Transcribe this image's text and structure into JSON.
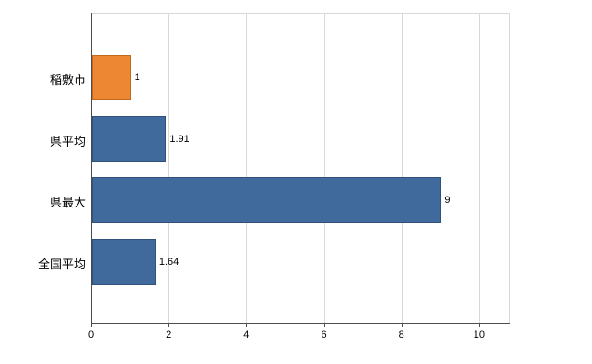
{
  "chart_data": {
    "type": "bar",
    "orientation": "horizontal",
    "title": "",
    "xlabel": "",
    "ylabel": "",
    "categories": [
      "稲敷市",
      "県平均",
      "県最大",
      "全国平均"
    ],
    "values": [
      1,
      1.91,
      9,
      1.64
    ],
    "value_labels": [
      "1",
      "1.91",
      "9",
      "1.64"
    ],
    "bar_colors": [
      "#ee8733",
      "#40699c",
      "#40699c",
      "#40699c"
    ],
    "bar_border_colors": [
      "#c06a1f",
      "#30517a",
      "#30517a",
      "#30517a"
    ],
    "xticks": [
      "0",
      "2",
      "4",
      "6",
      "8",
      "10"
    ],
    "xtick_values": [
      0,
      2,
      4,
      6,
      8,
      10
    ],
    "xlim": [
      0,
      10.8
    ],
    "grid": "vertical",
    "legend": "none",
    "background_color": "#ffffff",
    "gridline_color": "#d9d9d9",
    "axis_color": "#4d4d4d"
  }
}
